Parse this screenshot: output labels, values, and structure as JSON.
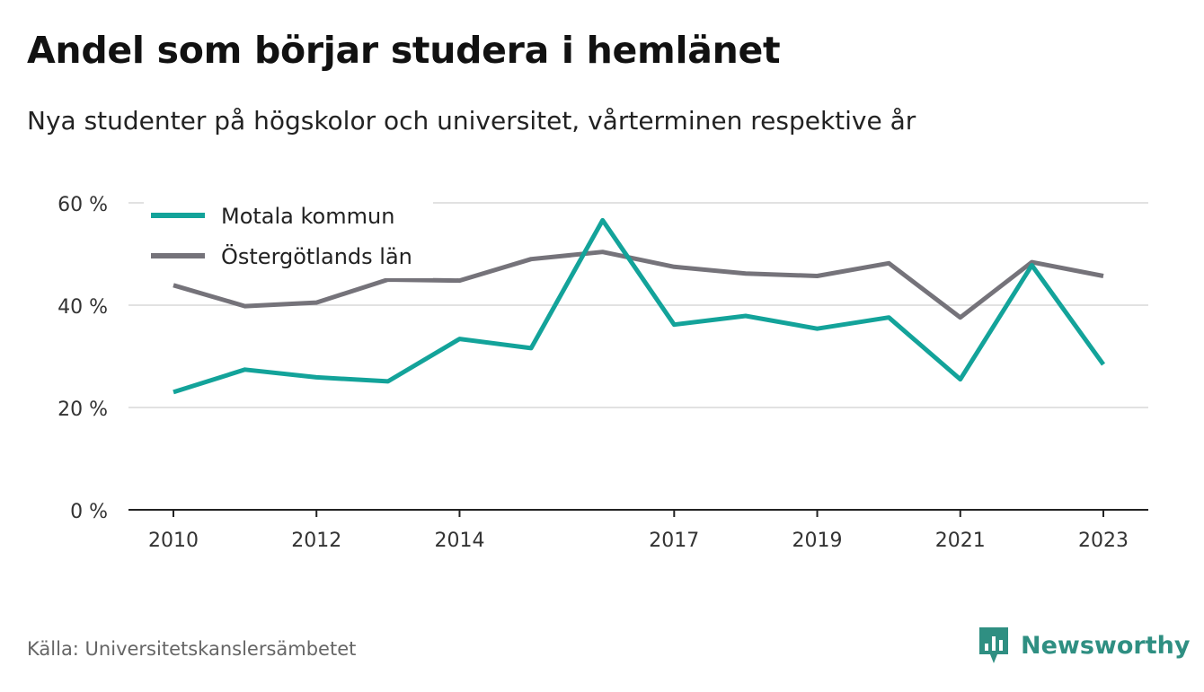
{
  "title": "Andel som börjar studera i hemlänet",
  "subtitle": "Nya studenter på högskolor och universitet, vårterminen respektive år",
  "source": "Källa: Universitetskanslersämbetet",
  "brand": {
    "name": "Newsworthy",
    "icon": "newsworthy-logo-icon",
    "color": "#2f8f82"
  },
  "chart_data": {
    "type": "line",
    "title": "",
    "xlabel": "",
    "ylabel": "",
    "x": [
      2010,
      2011,
      2012,
      2013,
      2014,
      2015,
      2016,
      2017,
      2018,
      2019,
      2020,
      2021,
      2022,
      2023
    ],
    "x_tick_labels": [
      "2010",
      "2012",
      "2014",
      "2017",
      "2019",
      "2021",
      "2023"
    ],
    "x_ticks": [
      2010,
      2012,
      2014,
      2017,
      2019,
      2021,
      2023
    ],
    "y_ticks": [
      0,
      20,
      40,
      60
    ],
    "y_tick_labels": [
      "0 %",
      "20 %",
      "40 %",
      "60 %"
    ],
    "ylim": [
      0,
      60
    ],
    "xlim": [
      2010,
      2023
    ],
    "grid": true,
    "legend_position": "top-left",
    "series": [
      {
        "name": "Motala kommun",
        "color": "#13a39a",
        "values": [
          23.0,
          27.4,
          25.9,
          25.1,
          33.4,
          31.6,
          56.6,
          36.2,
          37.9,
          35.4,
          37.6,
          25.5,
          47.8,
          28.4
        ]
      },
      {
        "name": "Östergötlands län",
        "color": "#75737a",
        "values": [
          43.9,
          39.8,
          40.5,
          45.0,
          44.8,
          49.0,
          50.4,
          47.5,
          46.2,
          45.7,
          48.2,
          37.6,
          48.4,
          45.7
        ]
      }
    ]
  }
}
